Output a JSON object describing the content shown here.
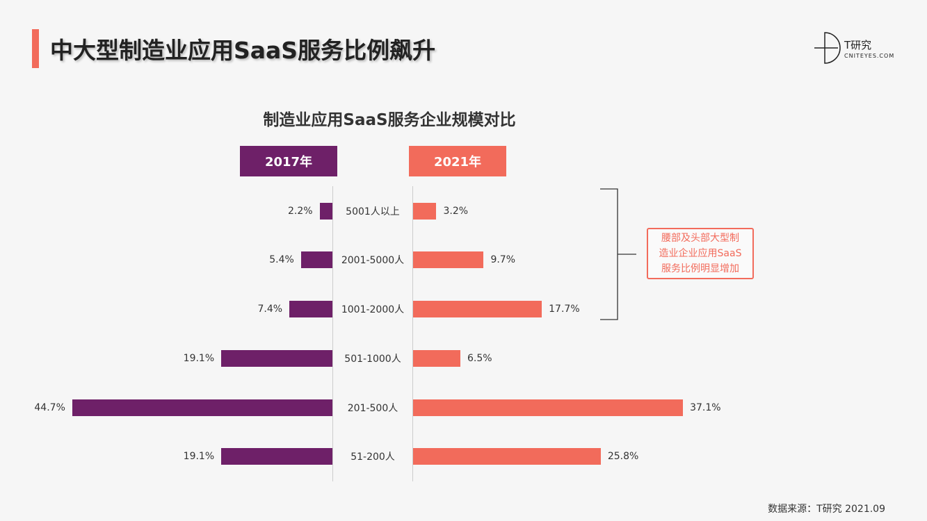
{
  "page": {
    "title": "中大型制造业应用SaaS服务比例飙升",
    "logo_text": "T研究",
    "logo_sub": "CNITEYES.COM",
    "source": "数据来源：T研究 2021.09"
  },
  "chart_data": {
    "type": "bar",
    "title": "制造业应用SaaS服务企业规模对比",
    "categories": [
      "5001人以上",
      "2001-5000人",
      "1001-2000人",
      "501-1000人",
      "201-500人",
      "51-200人"
    ],
    "series": [
      {
        "name": "2017年",
        "values": [
          2.2,
          5.4,
          7.4,
          19.1,
          44.7,
          19.1
        ],
        "color": "#6e2068"
      },
      {
        "name": "2021年",
        "values": [
          3.2,
          9.7,
          17.7,
          6.5,
          37.1,
          25.8
        ],
        "color": "#f26b5b"
      }
    ],
    "unit": "%",
    "annotation": "腰部及头部大型制造业企业应用SaaS服务比例明显增加",
    "annotation_lines": [
      "腰部及头部大型制",
      "造业企业应用SaaS",
      "服务比例明显增加"
    ]
  }
}
